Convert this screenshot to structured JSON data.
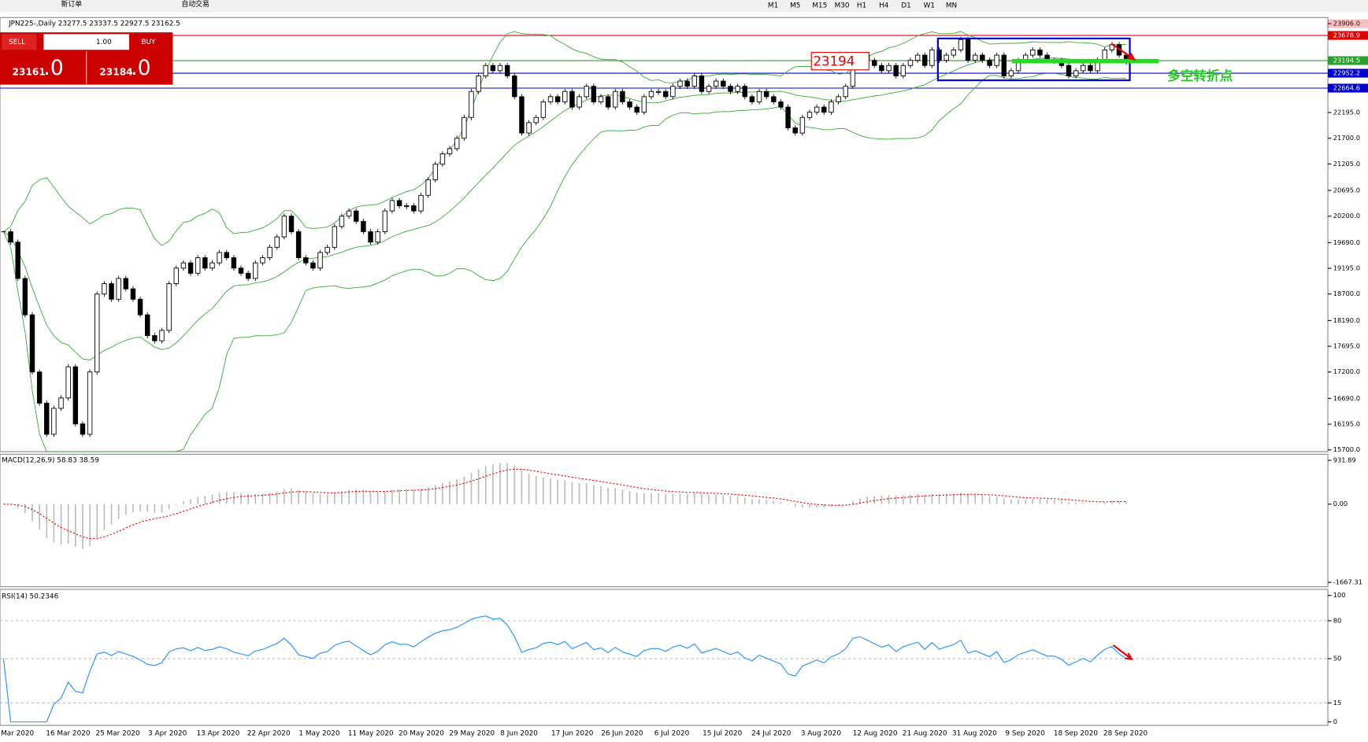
{
  "toolbar": {
    "new_order": "新订单",
    "auto_trading": "自动交易",
    "timeframes": [
      "M1",
      "M5",
      "M15",
      "M30",
      "H1",
      "H4",
      "D1",
      "W1",
      "MN"
    ]
  },
  "trade_panel": {
    "sell": "SELL",
    "lot": "1.00",
    "buy": "BUY",
    "bid_main": "23161",
    "bid_frac": ".0",
    "ask_main": "23184",
    "ask_frac": ".0"
  },
  "chart_data": [
    {
      "type": "candlestick",
      "title": "JPN225-,Daily  23277.5 23337.5 22927.5 23162.5",
      "x_labels": [
        "Mar 2020",
        "16 Mar 2020",
        "25 Mar 2020",
        "3 Apr 2020",
        "13 Apr 2020",
        "22 Apr 2020",
        "1 May 2020",
        "11 May 2020",
        "20 May 2020",
        "29 May 2020",
        "8 Jun 2020",
        "17 Jun 2020",
        "26 Jun 2020",
        "6 Jul 2020",
        "15 Jul 2020",
        "24 Jul 2020",
        "3 Aug 2020",
        "12 Aug 2020",
        "21 Aug 2020",
        "31 Aug 2020",
        "9 Sep 2020",
        "18 Sep 2020",
        "28 Sep 2020"
      ],
      "close": [
        19900,
        19700,
        19000,
        18300,
        17200,
        16600,
        16000,
        16500,
        16700,
        17300,
        16200,
        16000,
        17200,
        18700,
        18900,
        18600,
        19000,
        18800,
        18600,
        18300,
        17900,
        17800,
        18000,
        18900,
        19200,
        19300,
        19100,
        19400,
        19200,
        19300,
        19500,
        19400,
        19200,
        19100,
        19000,
        19300,
        19400,
        19600,
        19800,
        20200,
        19900,
        19400,
        19300,
        19200,
        19500,
        19600,
        20000,
        20200,
        20300,
        20100,
        19900,
        19700,
        19900,
        20300,
        20500,
        20400,
        20400,
        20300,
        20600,
        20900,
        21200,
        21400,
        21500,
        21700,
        22100,
        22600,
        22900,
        23100,
        23000,
        23100,
        22900,
        22500,
        21800,
        22000,
        22100,
        22400,
        22500,
        22400,
        22600,
        22300,
        22500,
        22700,
        22400,
        22500,
        22300,
        22600,
        22400,
        22300,
        22200,
        22500,
        22600,
        22600,
        22500,
        22700,
        22800,
        22700,
        22900,
        22600,
        22700,
        22800,
        22700,
        22600,
        22700,
        22500,
        22400,
        22600,
        22500,
        22400,
        22300,
        21900,
        21800,
        22100,
        22200,
        22300,
        22200,
        22400,
        22500,
        22700,
        23200,
        23300,
        23200,
        23100,
        23000,
        23100,
        22900,
        23100,
        23200,
        23300,
        23100,
        23400,
        23200,
        23300,
        23400,
        23600,
        23200,
        23300,
        23200,
        23100,
        23300,
        22900,
        23000,
        23200,
        23300,
        23400,
        23300,
        23200,
        23200,
        23100,
        22900,
        23000,
        23100,
        23000,
        23200,
        23400,
        23500,
        23300,
        23162.5
      ],
      "ylim": [
        15700,
        23906
      ],
      "yticks": [
        {
          "value": 23906,
          "label": "23906.0"
        },
        {
          "value": 22195,
          "label": "22195.0"
        },
        {
          "value": 21700,
          "label": "21700.0"
        },
        {
          "value": 21205,
          "label": "21205.0"
        },
        {
          "value": 20695,
          "label": "20695.0"
        },
        {
          "value": 20200,
          "label": "20200.0"
        },
        {
          "value": 19690,
          "label": "19690.0"
        },
        {
          "value": 19195,
          "label": "19195.0"
        },
        {
          "value": 18700,
          "label": "18700.0"
        },
        {
          "value": 18190,
          "label": "18190.0"
        },
        {
          "value": 17695,
          "label": "17695.0"
        },
        {
          "value": 17200,
          "label": "17200.0"
        },
        {
          "value": 16690,
          "label": "16690.0"
        },
        {
          "value": 16195,
          "label": "16195.0"
        },
        {
          "value": 15700,
          "label": "15700.0"
        }
      ],
      "levels": [
        {
          "value": 23678.9,
          "label": "23678.9",
          "color": "#e00000"
        },
        {
          "value": 23194.5,
          "label": "23194.5",
          "color": "#2ca02c"
        },
        {
          "value": 22952.2,
          "label": "22952.2",
          "color": "#0000cc"
        },
        {
          "value": 22664.6,
          "label": "22664.6",
          "color": "#0000cc"
        }
      ],
      "annotation_price": "23194",
      "annotation_text": "多空转折点"
    },
    {
      "type": "macd",
      "title": "MACD(12,26,9) 58.83 38.59",
      "ylim": [
        -1667.31,
        931.89
      ],
      "yticks": [
        931.89,
        {
          "value": 0,
          "label": "0.00"
        },
        -1667.31
      ]
    },
    {
      "type": "rsi",
      "title": "RSI(14) 50.2346",
      "ylim": [
        0,
        100
      ],
      "yticks": [
        100,
        80,
        50,
        15,
        0
      ]
    }
  ]
}
